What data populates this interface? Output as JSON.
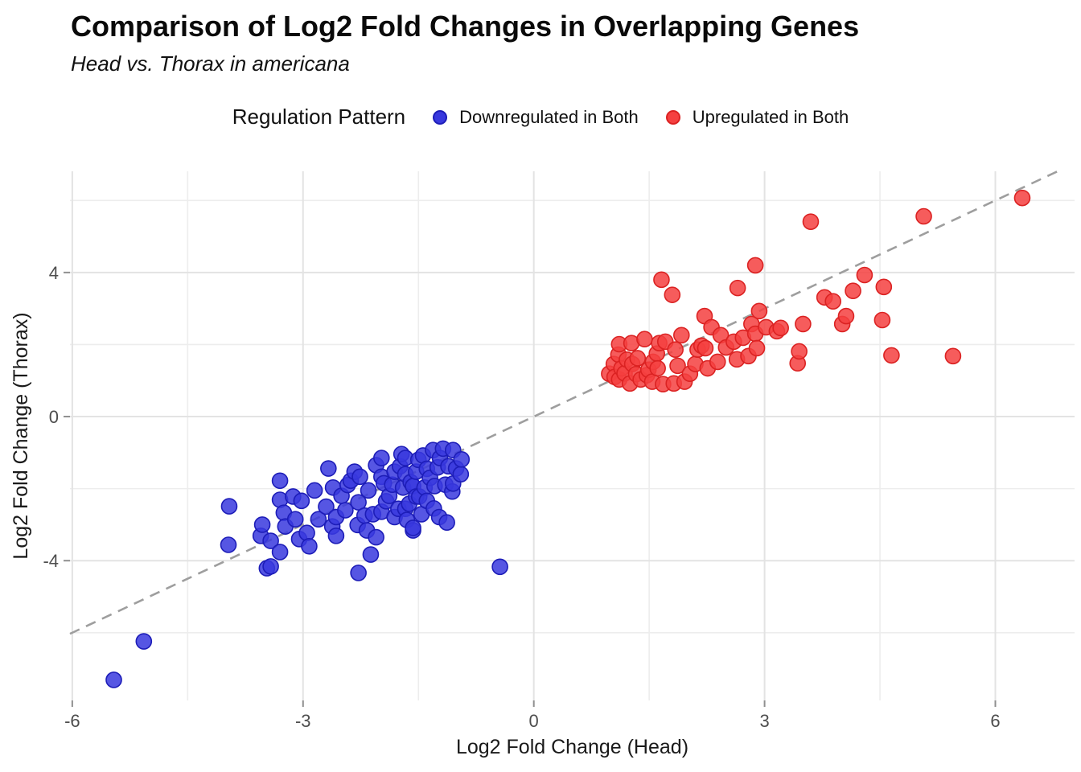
{
  "header": {
    "title": "Comparison of Log2 Fold Changes in Overlapping Genes",
    "subtitle": "Head vs. Thorax in americana"
  },
  "legend": {
    "title": "Regulation Pattern",
    "items": [
      {
        "label": "Downregulated in Both",
        "color": "#3838DE",
        "border": "#1D1DB8"
      },
      {
        "label": "Upregulated in Both",
        "color": "#F54040",
        "border": "#DB2222"
      }
    ]
  },
  "chart_data": {
    "type": "scatter",
    "title": "Comparison of Log2 Fold Changes in Overlapping Genes",
    "subtitle": "Head vs. Thorax in americana",
    "xlabel": "Log2 Fold Change (Head)",
    "ylabel": "Log2 Fold Change (Thorax)",
    "xlim": [
      -6.03,
      7.03
    ],
    "ylim": [
      -7.88,
      6.81
    ],
    "x_ticks": [
      -6,
      -3,
      0,
      3,
      6
    ],
    "y_ticks": [
      -4,
      0,
      4
    ],
    "x_minor": [
      -4.5,
      -1.5,
      1.5,
      4.5
    ],
    "y_minor": [
      -6,
      -2,
      2,
      6
    ],
    "grid": true,
    "legend_position": "top",
    "reference_line": {
      "equation": "y = x",
      "style": "dashed",
      "color": "#9E9E9E"
    },
    "colors": {
      "major_grid": "#E3E3E3",
      "minor_grid": "#EDEDED",
      "tick": "#8F8F8F",
      "tick_label": "#4D4D4D",
      "axis_title": "#1A1A1A"
    },
    "series": [
      {
        "name": "Downregulated in Both",
        "color": "#3838DE",
        "stroke": "#1D1DB8",
        "points": [
          [
            -5.46,
            -7.31
          ],
          [
            -5.07,
            -6.24
          ],
          [
            -3.97,
            -3.56
          ],
          [
            -3.96,
            -2.49
          ],
          [
            -3.55,
            -3.31
          ],
          [
            -3.53,
            -3.0
          ],
          [
            -3.47,
            -4.21
          ],
          [
            -3.42,
            -4.16
          ],
          [
            -3.42,
            -3.45
          ],
          [
            -3.3,
            -3.76
          ],
          [
            -3.3,
            -2.31
          ],
          [
            -3.3,
            -1.78
          ],
          [
            -3.25,
            -2.67
          ],
          [
            -3.23,
            -3.05
          ],
          [
            -3.13,
            -2.22
          ],
          [
            -3.1,
            -2.85
          ],
          [
            -3.05,
            -3.4
          ],
          [
            -3.02,
            -2.34
          ],
          [
            -2.95,
            -3.23
          ],
          [
            -2.92,
            -3.6
          ],
          [
            -2.85,
            -2.05
          ],
          [
            -2.8,
            -2.85
          ],
          [
            -2.7,
            -2.5
          ],
          [
            -2.67,
            -1.44
          ],
          [
            -2.62,
            -3.05
          ],
          [
            -2.61,
            -1.97
          ],
          [
            -2.57,
            -3.31
          ],
          [
            -2.57,
            -2.79
          ],
          [
            -2.5,
            -2.2
          ],
          [
            -2.45,
            -2.6
          ],
          [
            -2.42,
            -1.9
          ],
          [
            -2.38,
            -1.78
          ],
          [
            -2.33,
            -1.53
          ],
          [
            -2.29,
            -3.01
          ],
          [
            -2.28,
            -4.34
          ],
          [
            -2.28,
            -2.38
          ],
          [
            -2.26,
            -1.67
          ],
          [
            -2.2,
            -2.75
          ],
          [
            -2.17,
            -3.16
          ],
          [
            -2.15,
            -2.05
          ],
          [
            -2.12,
            -3.83
          ],
          [
            -2.09,
            -2.71
          ],
          [
            -2.05,
            -3.35
          ],
          [
            -2.05,
            -1.35
          ],
          [
            -1.98,
            -2.64
          ],
          [
            -1.98,
            -1.67
          ],
          [
            -1.98,
            -1.15
          ],
          [
            -1.95,
            -1.85
          ],
          [
            -1.92,
            -2.35
          ],
          [
            -1.88,
            -2.2
          ],
          [
            -1.84,
            -1.89
          ],
          [
            -1.81,
            -2.79
          ],
          [
            -1.81,
            -1.53
          ],
          [
            -1.76,
            -2.56
          ],
          [
            -1.74,
            -1.38
          ],
          [
            -1.72,
            -1.04
          ],
          [
            -1.7,
            -1.97
          ],
          [
            -1.67,
            -2.56
          ],
          [
            -1.67,
            -1.6
          ],
          [
            -1.67,
            -1.15
          ],
          [
            -1.65,
            -2.87
          ],
          [
            -1.62,
            -2.42
          ],
          [
            -1.6,
            -1.82
          ],
          [
            -1.57,
            -3.16
          ],
          [
            -1.57,
            -3.09
          ],
          [
            -1.57,
            -1.93
          ],
          [
            -1.53,
            -2.22
          ],
          [
            -1.53,
            -1.53
          ],
          [
            -1.5,
            -1.2
          ],
          [
            -1.49,
            -2.22
          ],
          [
            -1.46,
            -2.71
          ],
          [
            -1.44,
            -1.08
          ],
          [
            -1.42,
            -1.97
          ],
          [
            -1.39,
            -2.34
          ],
          [
            -1.39,
            -1.45
          ],
          [
            -1.35,
            -1.7
          ],
          [
            -1.31,
            -0.93
          ],
          [
            -1.3,
            -2.55
          ],
          [
            -1.29,
            -1.93
          ],
          [
            -1.25,
            -1.41
          ],
          [
            -1.23,
            -2.79
          ],
          [
            -1.22,
            -1.15
          ],
          [
            -1.18,
            -0.89
          ],
          [
            -1.15,
            -1.89
          ],
          [
            -1.13,
            -2.94
          ],
          [
            -1.11,
            -1.38
          ],
          [
            -1.06,
            -2.08
          ],
          [
            -1.05,
            -1.86
          ],
          [
            -1.05,
            -0.93
          ],
          [
            -1.01,
            -1.44
          ],
          [
            -0.95,
            -1.6
          ],
          [
            -0.94,
            -1.19
          ],
          [
            -0.44,
            -4.17
          ]
        ]
      },
      {
        "name": "Upregulated in Both",
        "color": "#F54040",
        "stroke": "#DB2222",
        "points": [
          [
            0.98,
            1.19
          ],
          [
            1.04,
            1.46
          ],
          [
            1.05,
            1.1
          ],
          [
            1.1,
            1.72
          ],
          [
            1.11,
            2.01
          ],
          [
            1.11,
            1.03
          ],
          [
            1.14,
            1.34
          ],
          [
            1.18,
            1.2
          ],
          [
            1.21,
            1.58
          ],
          [
            1.25,
            0.92
          ],
          [
            1.27,
            2.04
          ],
          [
            1.28,
            1.46
          ],
          [
            1.33,
            1.18
          ],
          [
            1.35,
            1.62
          ],
          [
            1.39,
            1.03
          ],
          [
            1.44,
            2.15
          ],
          [
            1.47,
            1.15
          ],
          [
            1.49,
            1.3
          ],
          [
            1.54,
            0.97
          ],
          [
            1.55,
            1.52
          ],
          [
            1.6,
            1.75
          ],
          [
            1.61,
            1.34
          ],
          [
            1.63,
            2.04
          ],
          [
            1.66,
            3.8
          ],
          [
            1.68,
            0.9
          ],
          [
            1.71,
            2.08
          ],
          [
            1.8,
            3.38
          ],
          [
            1.82,
            0.92
          ],
          [
            1.84,
            1.86
          ],
          [
            1.87,
            1.41
          ],
          [
            1.92,
            2.26
          ],
          [
            1.96,
            0.97
          ],
          [
            2.03,
            1.19
          ],
          [
            2.1,
            1.46
          ],
          [
            2.13,
            1.86
          ],
          [
            2.18,
            1.97
          ],
          [
            2.22,
            2.79
          ],
          [
            2.23,
            1.9
          ],
          [
            2.26,
            1.34
          ],
          [
            2.31,
            2.48
          ],
          [
            2.39,
            1.52
          ],
          [
            2.43,
            2.26
          ],
          [
            2.5,
            1.92
          ],
          [
            2.6,
            2.08
          ],
          [
            2.64,
            1.59
          ],
          [
            2.65,
            3.57
          ],
          [
            2.72,
            2.19
          ],
          [
            2.79,
            1.68
          ],
          [
            2.83,
            2.57
          ],
          [
            2.88,
            4.2
          ],
          [
            2.88,
            2.3
          ],
          [
            2.9,
            1.9
          ],
          [
            2.93,
            2.93
          ],
          [
            3.02,
            2.48
          ],
          [
            3.16,
            2.37
          ],
          [
            3.21,
            2.46
          ],
          [
            3.43,
            1.48
          ],
          [
            3.45,
            1.81
          ],
          [
            3.5,
            2.57
          ],
          [
            3.6,
            5.41
          ],
          [
            3.78,
            3.31
          ],
          [
            3.89,
            3.2
          ],
          [
            4.01,
            2.57
          ],
          [
            4.06,
            2.79
          ],
          [
            4.15,
            3.49
          ],
          [
            4.3,
            3.93
          ],
          [
            4.53,
            2.68
          ],
          [
            4.55,
            3.6
          ],
          [
            4.65,
            1.7
          ],
          [
            5.07,
            5.56
          ],
          [
            5.45,
            1.68
          ],
          [
            6.35,
            6.07
          ]
        ]
      }
    ]
  }
}
